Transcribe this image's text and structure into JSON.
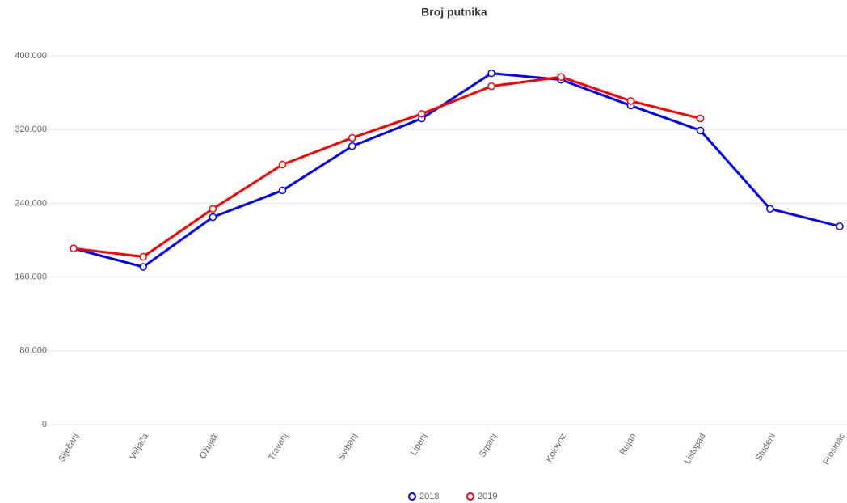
{
  "chart_data": {
    "type": "line",
    "title": "Broj putnika",
    "categories": [
      "Siječanj",
      "Veljača",
      "Ožujak",
      "Travanj",
      "Svibanj",
      "Lipanj",
      "Srpanj",
      "Kolovoz",
      "Rujan",
      "Listopad",
      "Studeni",
      "Prosinac"
    ],
    "series": [
      {
        "name": "2018",
        "color": "#0000ff",
        "values": [
          191000,
          171000,
          225000,
          254000,
          302000,
          332000,
          381000,
          374000,
          346000,
          319000,
          234000,
          215000
        ]
      },
      {
        "name": "2019",
        "color": "#ff0000",
        "values": [
          191000,
          182000,
          234000,
          282000,
          311000,
          337000,
          367000,
          377000,
          351000,
          332000,
          null,
          null
        ]
      }
    ],
    "ylim": [
      0,
      400000
    ],
    "yticks": [
      0,
      {
        "value": 80000,
        "label": "80.000"
      },
      {
        "value": 160000,
        "label": "160.000"
      },
      {
        "value": 240000,
        "label": "240.000"
      },
      {
        "value": 320000,
        "label": "320.000"
      },
      {
        "value": 400000,
        "label": "400.000"
      }
    ],
    "grid": true,
    "legend": "bottom"
  }
}
